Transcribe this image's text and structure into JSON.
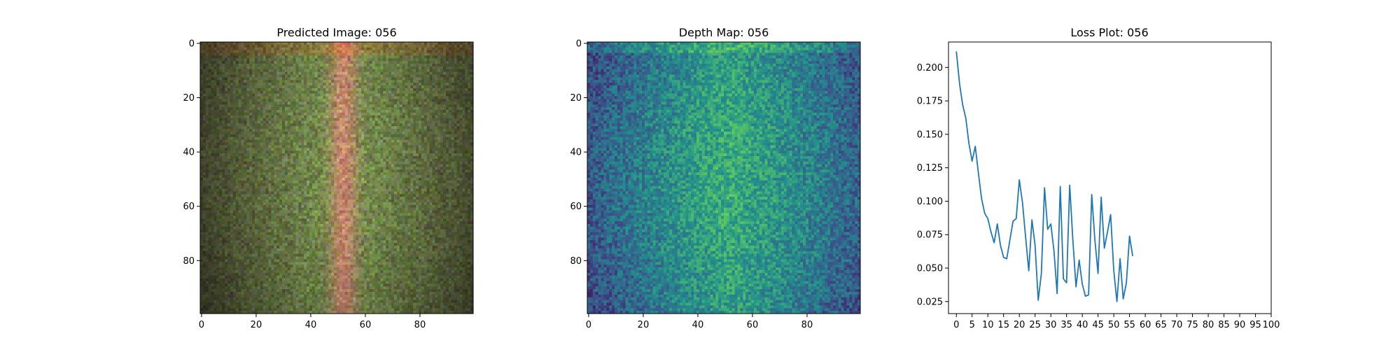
{
  "chart_data": [
    {
      "type": "heatmap",
      "title": "Predicted Image: 056",
      "xticks": [
        "0",
        "20",
        "40",
        "60",
        "80"
      ],
      "yticks": [
        "0",
        "20",
        "40",
        "60",
        "80"
      ],
      "xlim": [
        0,
        99
      ],
      "ylim": [
        99,
        0
      ],
      "colormap": "rgb",
      "colors": {
        "center": "#c87858",
        "mid": "#7a8a58",
        "edge": "#3a3a2a"
      }
    },
    {
      "type": "heatmap",
      "title": "Depth Map: 056",
      "xticks": [
        "0",
        "20",
        "40",
        "60",
        "80"
      ],
      "yticks": [
        "0",
        "20",
        "40",
        "60",
        "80"
      ],
      "xlim": [
        0,
        99
      ],
      "ylim": [
        99,
        0
      ],
      "colormap": "viridis"
    },
    {
      "type": "line",
      "title": "Loss Plot: 056",
      "xlabel": "",
      "ylabel": "",
      "xlim": [
        -2.5,
        100
      ],
      "ylim": [
        0.016,
        0.219
      ],
      "xticks": [
        "0",
        "5",
        "10",
        "15",
        "20",
        "25",
        "30",
        "35",
        "40",
        "45",
        "50",
        "55",
        "60",
        "65",
        "70",
        "75",
        "80",
        "85",
        "90",
        "95",
        "100"
      ],
      "yticks": [
        "0.025",
        "0.050",
        "0.075",
        "0.100",
        "0.125",
        "0.150",
        "0.175",
        "0.200"
      ],
      "grid": false,
      "color": "#1f77b4",
      "series": [
        {
          "x": [
            0,
            1,
            2,
            3,
            4,
            5,
            6,
            7,
            8,
            9,
            10,
            11,
            12,
            13,
            14,
            15,
            16,
            17,
            18,
            19,
            20,
            21,
            22,
            23,
            24,
            25,
            26,
            27,
            28,
            29,
            30,
            31,
            32,
            33,
            34,
            35,
            36,
            37,
            38,
            39,
            40,
            41,
            42,
            43,
            44,
            45,
            46,
            47,
            48,
            49,
            50,
            51,
            52,
            53,
            54,
            55,
            56
          ],
          "values": [
            0.212,
            0.188,
            0.172,
            0.162,
            0.143,
            0.13,
            0.141,
            0.121,
            0.102,
            0.091,
            0.087,
            0.077,
            0.069,
            0.083,
            0.067,
            0.058,
            0.057,
            0.071,
            0.085,
            0.087,
            0.116,
            0.099,
            0.073,
            0.048,
            0.086,
            0.067,
            0.026,
            0.046,
            0.11,
            0.079,
            0.083,
            0.063,
            0.031,
            0.111,
            0.042,
            0.039,
            0.112,
            0.071,
            0.036,
            0.056,
            0.038,
            0.029,
            0.03,
            0.105,
            0.071,
            0.046,
            0.103,
            0.065,
            0.077,
            0.09,
            0.048,
            0.025,
            0.057,
            0.027,
            0.039,
            0.074,
            0.059
          ]
        }
      ]
    }
  ]
}
